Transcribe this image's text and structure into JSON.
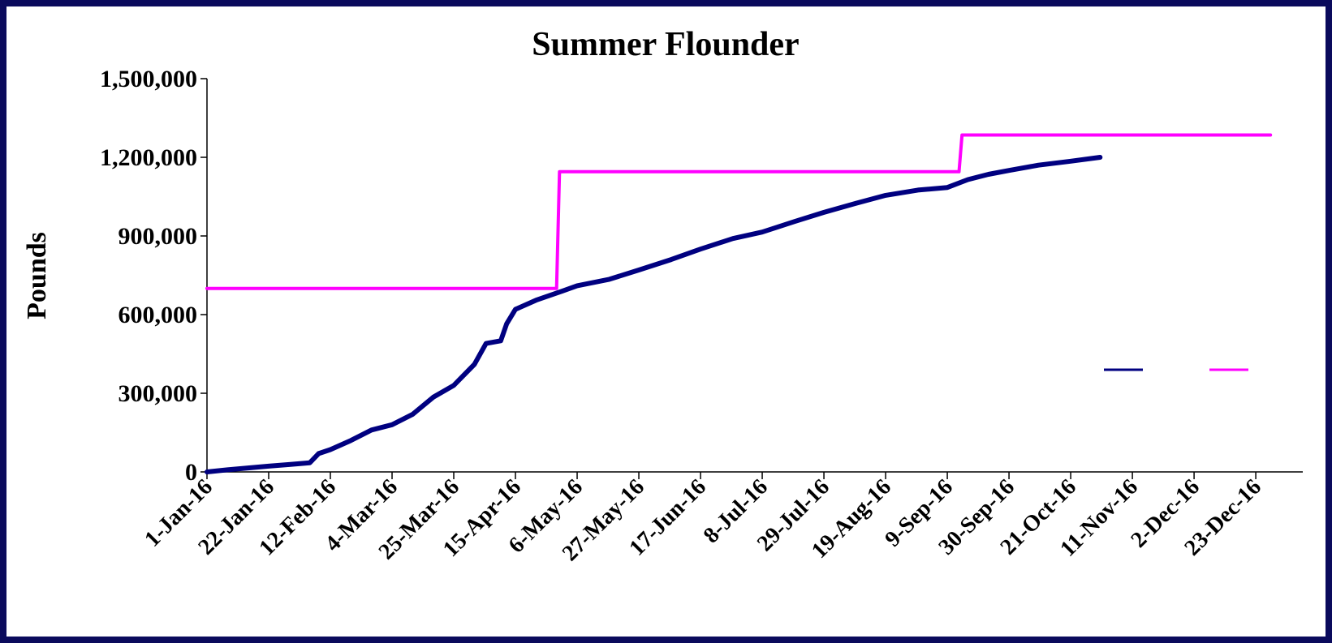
{
  "chart_data": {
    "type": "line",
    "title": "Summer Flounder",
    "ylabel": "Pounds",
    "xlim": [
      "2016-01-01",
      "2017-01-08"
    ],
    "xticks": [
      {
        "value": "2016-01-01",
        "label": "1-Jan-16"
      },
      {
        "value": "2016-01-22",
        "label": "22-Jan-16"
      },
      {
        "value": "2016-02-12",
        "label": "12-Feb-16"
      },
      {
        "value": "2016-03-04",
        "label": "4-Mar-16"
      },
      {
        "value": "2016-03-25",
        "label": "25-Mar-16"
      },
      {
        "value": "2016-04-15",
        "label": "15-Apr-16"
      },
      {
        "value": "2016-05-06",
        "label": "6-May-16"
      },
      {
        "value": "2016-05-27",
        "label": "27-May-16"
      },
      {
        "value": "2016-06-17",
        "label": "17-Jun-16"
      },
      {
        "value": "2016-07-08",
        "label": "8-Jul-16"
      },
      {
        "value": "2016-07-29",
        "label": "29-Jul-16"
      },
      {
        "value": "2016-08-19",
        "label": "19-Aug-16"
      },
      {
        "value": "2016-09-09",
        "label": "9-Sep-16"
      },
      {
        "value": "2016-09-30",
        "label": "30-Sep-16"
      },
      {
        "value": "2016-10-21",
        "label": "21-Oct-16"
      },
      {
        "value": "2016-11-11",
        "label": "11-Nov-16"
      },
      {
        "value": "2016-12-02",
        "label": "2-Dec-16"
      },
      {
        "value": "2016-12-23",
        "label": "23-Dec-16"
      }
    ],
    "ylim": [
      0,
      1500000
    ],
    "yticks": [
      0,
      {
        "value": 300000,
        "label": "300,000"
      },
      {
        "value": 600000,
        "label": "600,000"
      },
      {
        "value": 900000,
        "label": "900,000"
      },
      {
        "value": 1200000,
        "label": "1,200,000"
      },
      {
        "value": 1500000,
        "label": "1,500,000"
      }
    ],
    "legend": "right",
    "series": [
      {
        "color": "#000080",
        "x": [
          "2016-01-01",
          "2016-01-08",
          "2016-01-15",
          "2016-01-22",
          "2016-01-29",
          "2016-02-05",
          "2016-02-08",
          "2016-02-12",
          "2016-02-19",
          "2016-02-26",
          "2016-03-04",
          "2016-03-11",
          "2016-03-18",
          "2016-03-25",
          "2016-04-01",
          "2016-04-05",
          "2016-04-10",
          "2016-04-12",
          "2016-04-15",
          "2016-04-22",
          "2016-05-01",
          "2016-05-06",
          "2016-05-17",
          "2016-05-27",
          "2016-06-07",
          "2016-06-17",
          "2016-06-28",
          "2016-07-08",
          "2016-07-19",
          "2016-07-29",
          "2016-08-09",
          "2016-08-19",
          "2016-08-30",
          "2016-09-09",
          "2016-09-16",
          "2016-09-23",
          "2016-09-30",
          "2016-10-10",
          "2016-10-21",
          "2016-10-31"
        ],
        "values": [
          0,
          8000,
          15000,
          22000,
          28000,
          35000,
          70000,
          85000,
          120000,
          160000,
          180000,
          220000,
          285000,
          330000,
          410000,
          490000,
          500000,
          565000,
          620000,
          655000,
          690000,
          710000,
          735000,
          770000,
          810000,
          850000,
          890000,
          915000,
          955000,
          990000,
          1025000,
          1055000,
          1075000,
          1085000,
          1115000,
          1135000,
          1150000,
          1170000,
          1185000,
          1200000
        ]
      },
      {
        "color": "#ff00ff",
        "x": [
          "2016-01-01",
          "2016-04-29",
          "2016-04-30",
          "2016-09-13",
          "2016-09-14",
          "2016-12-28"
        ],
        "values": [
          700000,
          700000,
          1145000,
          1145000,
          1285000,
          1285000
        ]
      }
    ]
  }
}
